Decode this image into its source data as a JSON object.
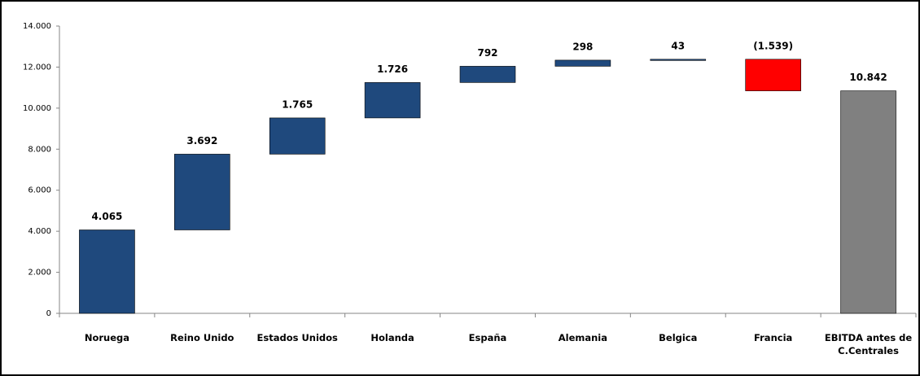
{
  "chart_data": {
    "type": "waterfall",
    "categories": [
      "Noruega",
      "Reino Unido",
      "Estados Unidos",
      "Holanda",
      "España",
      "Alemania",
      "Belgica",
      "Francia",
      "EBITDA antes de C.Centrales"
    ],
    "values": [
      4065,
      3692,
      1765,
      1726,
      792,
      298,
      43,
      -1539,
      10842
    ],
    "value_labels": [
      "4.065",
      "3.692",
      "1.765",
      "1.726",
      "792",
      "298",
      "43",
      "(1.539)",
      "10.842"
    ],
    "is_total": [
      false,
      false,
      false,
      false,
      false,
      false,
      false,
      false,
      true
    ],
    "colors": [
      "#1f497d",
      "#1f497d",
      "#1f497d",
      "#1f497d",
      "#1f497d",
      "#1f497d",
      "#1f497d",
      "#ff0000",
      "#808080"
    ],
    "ylim": [
      0,
      14000
    ],
    "yticks": [
      0,
      {
        "value": 2000,
        "label": "2.000"
      },
      {
        "value": 4000,
        "label": "4.000"
      },
      {
        "value": 6000,
        "label": "6.000"
      },
      {
        "value": 8000,
        "label": "8.000"
      },
      {
        "value": 10000,
        "label": "10.000"
      },
      {
        "value": 12000,
        "label": "12.000"
      },
      {
        "value": 14000,
        "label": "14.000"
      }
    ]
  }
}
